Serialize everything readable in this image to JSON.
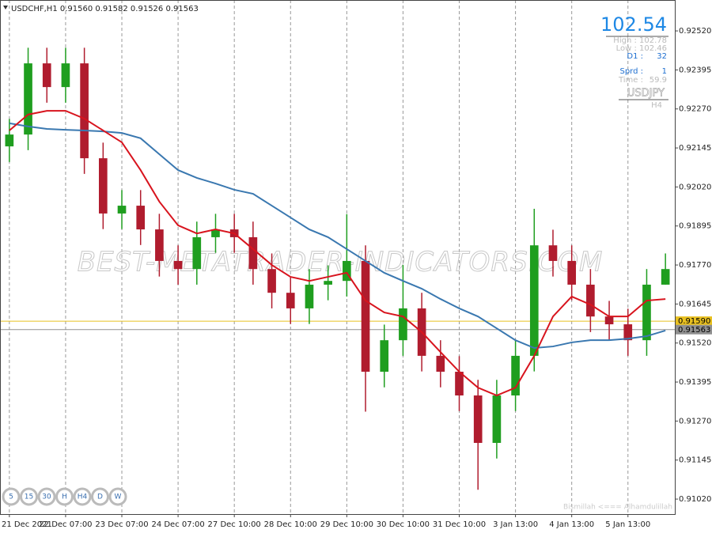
{
  "chart_data": {
    "type": "candlestick",
    "title": "USDCHF,H1  0.91560 0.91582 0.91526 0.91563",
    "watermark": "BEST-METATRADER-INDICATORS.COM",
    "footer": "Bismillah <=== Alhamdulillah",
    "up_color": "#1f9e1f",
    "down_color": "#b01c2e",
    "categories": [
      "21 Dec 2021",
      null,
      null,
      "22 Dec 07:00",
      null,
      null,
      "23 Dec 07:00",
      null,
      null,
      "24 Dec 07:00",
      null,
      null,
      "27 Dec 10:00",
      null,
      null,
      "28 Dec 10:00",
      null,
      null,
      "29 Dec 10:00",
      null,
      null,
      "30 Dec 10:00",
      null,
      null,
      "31 Dec 10:00",
      null,
      null,
      "3 Jan 13:00",
      null,
      null,
      "4 Jan 13:00",
      null,
      null,
      "5 Jan 13:00",
      null,
      null
    ],
    "open": [
      0.9215,
      0.92188,
      0.92416,
      0.9234,
      0.92416,
      0.92112,
      0.91935,
      0.9196,
      0.91884,
      0.91783,
      0.91757,
      0.91859,
      0.91884,
      0.91859,
      0.91757,
      0.91681,
      0.91631,
      0.91707,
      0.91719,
      0.91783,
      0.91428,
      0.91529,
      0.91631,
      0.91479,
      0.91428,
      0.91352,
      0.912,
      0.91352,
      0.91479,
      0.91833,
      0.91783,
      0.91707,
      0.91605,
      0.9158,
      0.91529,
      0.91707
    ],
    "high": [
      0.92238,
      0.92466,
      0.92466,
      0.92466,
      0.92466,
      0.92162,
      0.9201,
      0.9201,
      0.91934,
      0.91833,
      0.91909,
      0.91934,
      0.91934,
      0.91909,
      0.91807,
      0.91731,
      0.91757,
      0.91769,
      0.91933,
      0.91833,
      0.91579,
      0.9177,
      0.91681,
      0.91529,
      0.91478,
      0.91402,
      0.91402,
      0.91529,
      0.9195,
      0.91883,
      0.91833,
      0.91757,
      0.91655,
      0.9163,
      0.91757,
      0.91807
    ],
    "low": [
      0.921,
      0.92138,
      0.9229,
      0.9229,
      0.92062,
      0.91885,
      0.91885,
      0.91834,
      0.91733,
      0.91707,
      0.91707,
      0.91809,
      0.91809,
      0.91707,
      0.91631,
      0.91581,
      0.91581,
      0.91657,
      0.91669,
      0.913,
      0.91378,
      0.91479,
      0.91429,
      0.91378,
      0.91302,
      0.9105,
      0.9115,
      0.91302,
      0.91429,
      0.91733,
      0.91657,
      0.91555,
      0.9153,
      0.91479,
      0.91479,
      0.91707
    ],
    "close": [
      0.92188,
      0.92416,
      0.9234,
      0.92416,
      0.92112,
      0.91935,
      0.9196,
      0.91884,
      0.91783,
      0.91757,
      0.91859,
      0.91884,
      0.91859,
      0.91757,
      0.91681,
      0.91631,
      0.91707,
      0.91719,
      0.91783,
      0.91428,
      0.91529,
      0.91631,
      0.91479,
      0.91428,
      0.91352,
      0.912,
      0.91352,
      0.91479,
      0.91833,
      0.91783,
      0.91707,
      0.91605,
      0.9158,
      0.91529,
      0.91707,
      0.91757
    ],
    "lines": [
      {
        "color": "#3a78b0",
        "values": [
          0.92224,
          0.92214,
          0.92206,
          0.92203,
          0.92201,
          0.92198,
          0.92193,
          0.92176,
          0.92125,
          0.92074,
          0.92049,
          0.92031,
          0.92011,
          0.91998,
          0.9196,
          0.91922,
          0.91884,
          0.91859,
          0.91821,
          0.91783,
          0.91745,
          0.91719,
          0.91694,
          0.91661,
          0.91631,
          0.91605,
          0.91567,
          0.91529,
          0.91504,
          0.91509,
          0.91522,
          0.91529,
          0.91529,
          0.91534,
          0.91542,
          0.9156
        ]
      },
      {
        "color": "#d8141e",
        "values": [
          0.92201,
          0.92252,
          0.92264,
          0.92264,
          0.92239,
          0.92201,
          0.92163,
          0.92074,
          0.91973,
          0.91897,
          0.91871,
          0.91884,
          0.91871,
          0.91821,
          0.9177,
          0.91732,
          0.91719,
          0.91732,
          0.91745,
          0.91656,
          0.91618,
          0.91605,
          0.91555,
          0.91491,
          0.91428,
          0.91377,
          0.91352,
          0.91377,
          0.91479,
          0.91605,
          0.91669,
          0.91643,
          0.91605,
          0.91605,
          0.91656,
          0.91661
        ]
      }
    ],
    "price_lines": [
      {
        "value": 0.9159,
        "label": "0.91590",
        "color": "#e8c020"
      },
      {
        "value": 0.91563,
        "label": "0.91563",
        "color": "#909090"
      }
    ],
    "ylim": [
      0.90972,
      0.92619
    ],
    "yticks": [
      {
        "value": 0.9252,
        "label": "0.92520"
      },
      {
        "value": 0.92395,
        "label": "0.92395"
      },
      {
        "value": 0.9227,
        "label": "0.92270"
      },
      {
        "value": 0.92145,
        "label": "0.92145"
      },
      {
        "value": 0.9202,
        "label": "0.92020"
      },
      {
        "value": 0.91895,
        "label": "0.91895"
      },
      {
        "value": 0.9177,
        "label": "0.91770"
      },
      {
        "value": 0.91645,
        "label": "0.91645"
      },
      {
        "value": 0.9152,
        "label": "0.91520"
      },
      {
        "value": 0.91395,
        "label": "0.91395"
      },
      {
        "value": 0.9127,
        "label": "0.91270"
      },
      {
        "value": 0.91145,
        "label": "0.91145"
      },
      {
        "value": 0.9102,
        "label": "0.91020"
      }
    ],
    "panel": {
      "price": "102.54",
      "high": "High : 102.78",
      "low": "Low : 102.46",
      "d1": "D1 :",
      "d1_value": "32",
      "sprd": "Sprd :",
      "sprd_value": "1",
      "time": "Time :",
      "time_value": "59.9",
      "symbol": "USDJPY",
      "timeframe": "H4"
    },
    "timeframes": [
      "5",
      "15",
      "30",
      "H",
      "H4",
      "D",
      "W"
    ]
  }
}
